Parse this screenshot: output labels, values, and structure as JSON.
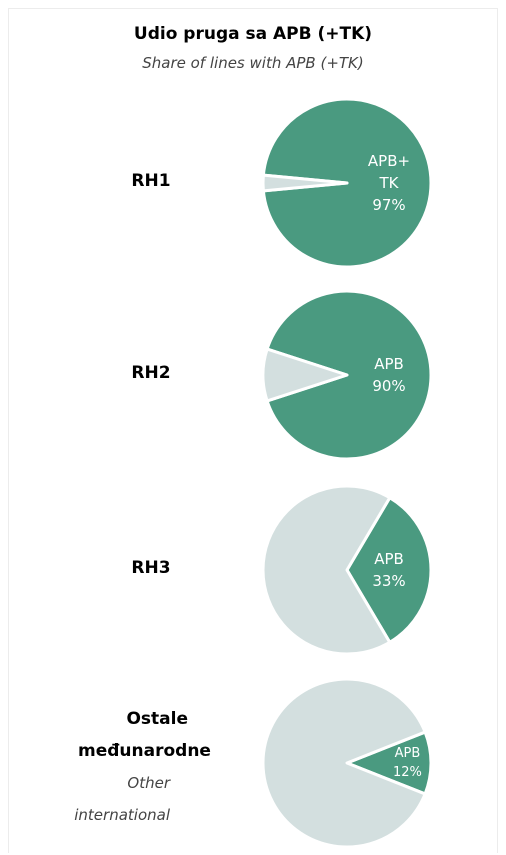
{
  "header": {
    "title": "Udio pruga sa APB (+TK)",
    "subtitle": "Share of lines with APB (+TK)"
  },
  "chart_data": [
    {
      "type": "pie",
      "label": "RH1",
      "categories": [
        "APB+ TK",
        null
      ],
      "values": [
        97,
        3
      ],
      "value_labels": [
        "97%",
        null
      ],
      "colors": [
        "#4a9a80",
        "#d3dfdf"
      ]
    },
    {
      "type": "pie",
      "label": "RH2",
      "categories": [
        "APB",
        null
      ],
      "values": [
        90,
        10
      ],
      "value_labels": [
        "90%",
        null
      ],
      "colors": [
        "#4a9a80",
        "#d3dfdf"
      ]
    },
    {
      "type": "pie",
      "label": "RH3",
      "categories": [
        "APB",
        null
      ],
      "values": [
        33,
        67
      ],
      "value_labels": [
        "33%",
        null
      ],
      "colors": [
        "#4a9a80",
        "#d3dfdf"
      ]
    },
    {
      "type": "pie",
      "label": "Ostale međunarodne",
      "label_en": "Other international",
      "categories": [
        "APB",
        null
      ],
      "values": [
        12,
        88
      ],
      "value_labels": [
        "12%",
        null
      ],
      "colors": [
        "#4a9a80",
        "#d3dfdf"
      ]
    }
  ]
}
